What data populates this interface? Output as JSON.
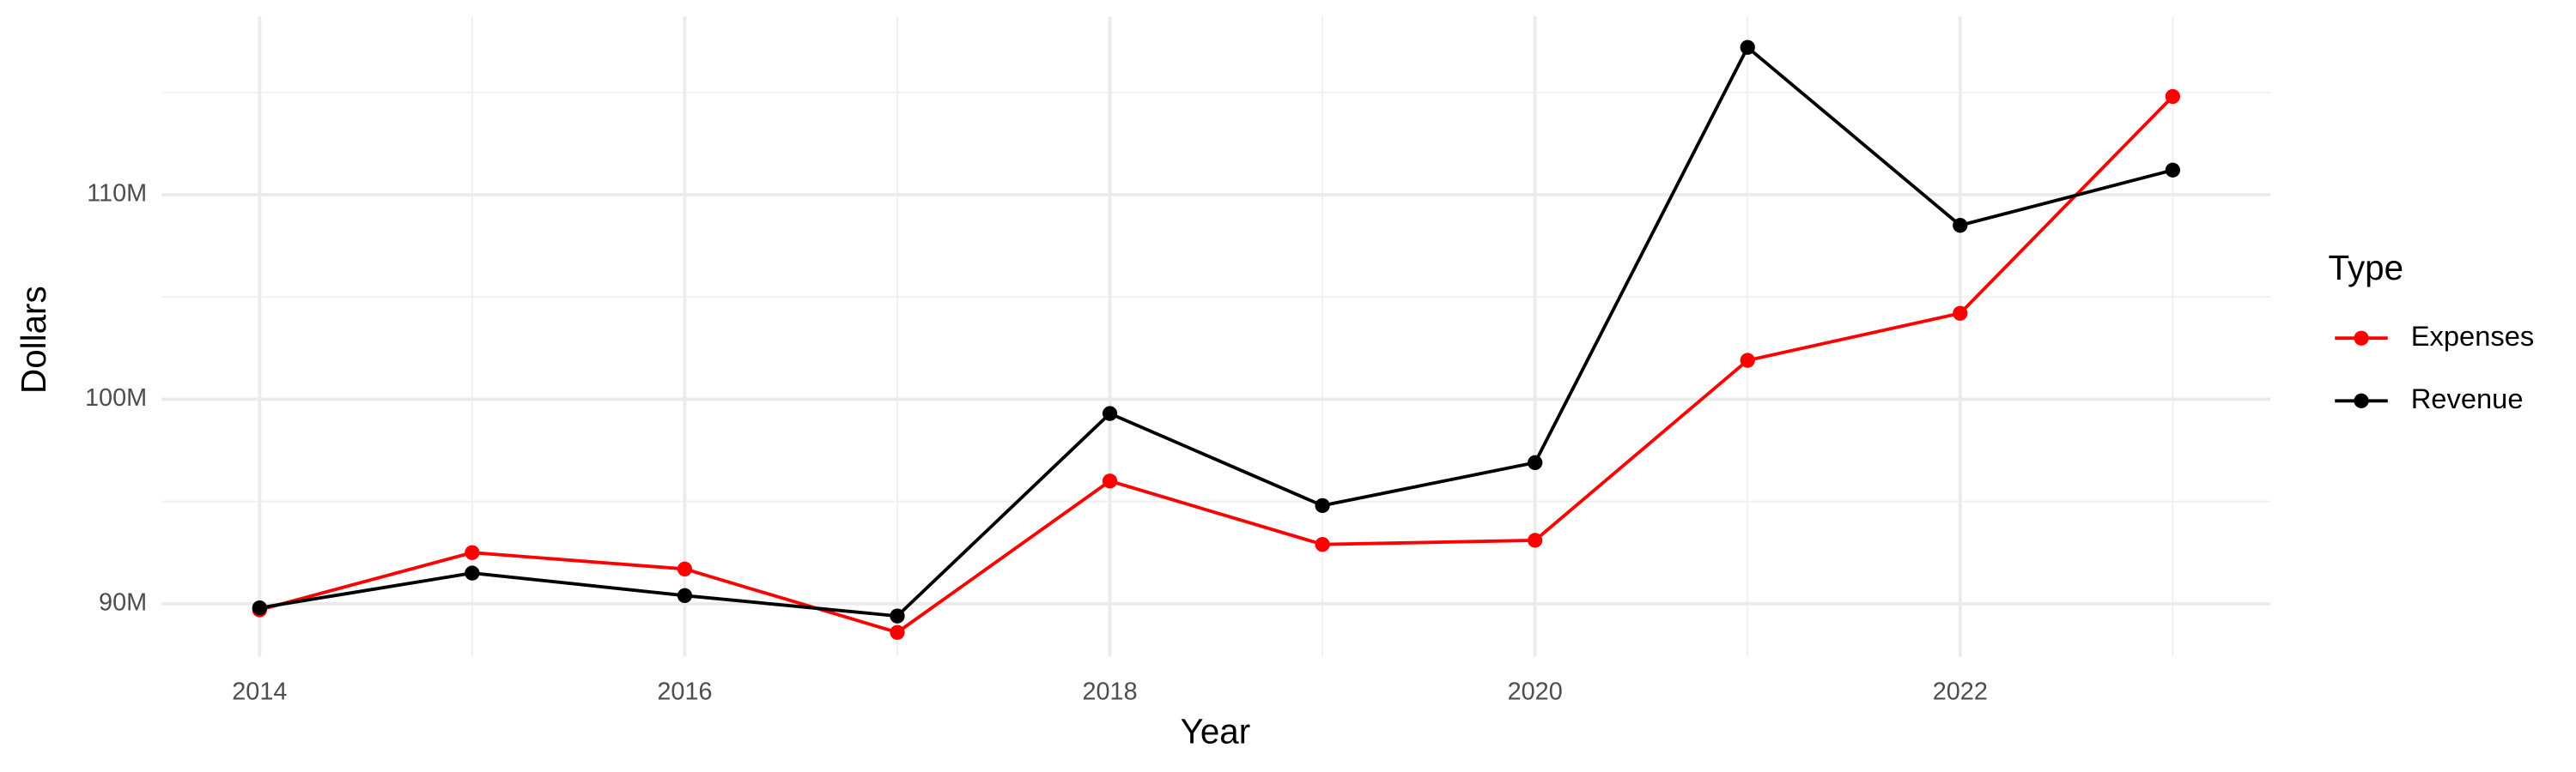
{
  "chart_data": {
    "type": "line",
    "x_label": "Year",
    "y_label": "Dollars",
    "legend_title": "Type",
    "legend_position": "right",
    "x": [
      2014,
      2015,
      2016,
      2017,
      2018,
      2019,
      2020,
      2021,
      2022,
      2023
    ],
    "series": [
      {
        "name": "Expenses",
        "color": "#ff0000",
        "values": [
          89700000,
          92500000,
          91700000,
          88600000,
          96000000,
          92900000,
          93100000,
          101900000,
          104200000,
          114800000
        ]
      },
      {
        "name": "Revenue",
        "color": "#000000",
        "values": [
          89800000,
          91500000,
          90400000,
          89400000,
          99300000,
          94800000,
          96900000,
          117200000,
          108500000,
          111200000
        ]
      }
    ],
    "xlim": [
      2013.54,
      2023.46
    ],
    "xticks": [
      2014,
      2016,
      2018,
      2020,
      2022
    ],
    "x_minor_ticks": [
      2015,
      2017,
      2019,
      2021,
      2023
    ],
    "ylim": [
      87420000,
      118710000
    ],
    "yticks": [
      {
        "value": 90000000,
        "label": "90M"
      },
      {
        "value": 100000000,
        "label": "100M"
      },
      {
        "value": 110000000,
        "label": "110M"
      }
    ],
    "y_minor_ticks": [
      95000000,
      105000000,
      115000000
    ],
    "grid": true
  }
}
